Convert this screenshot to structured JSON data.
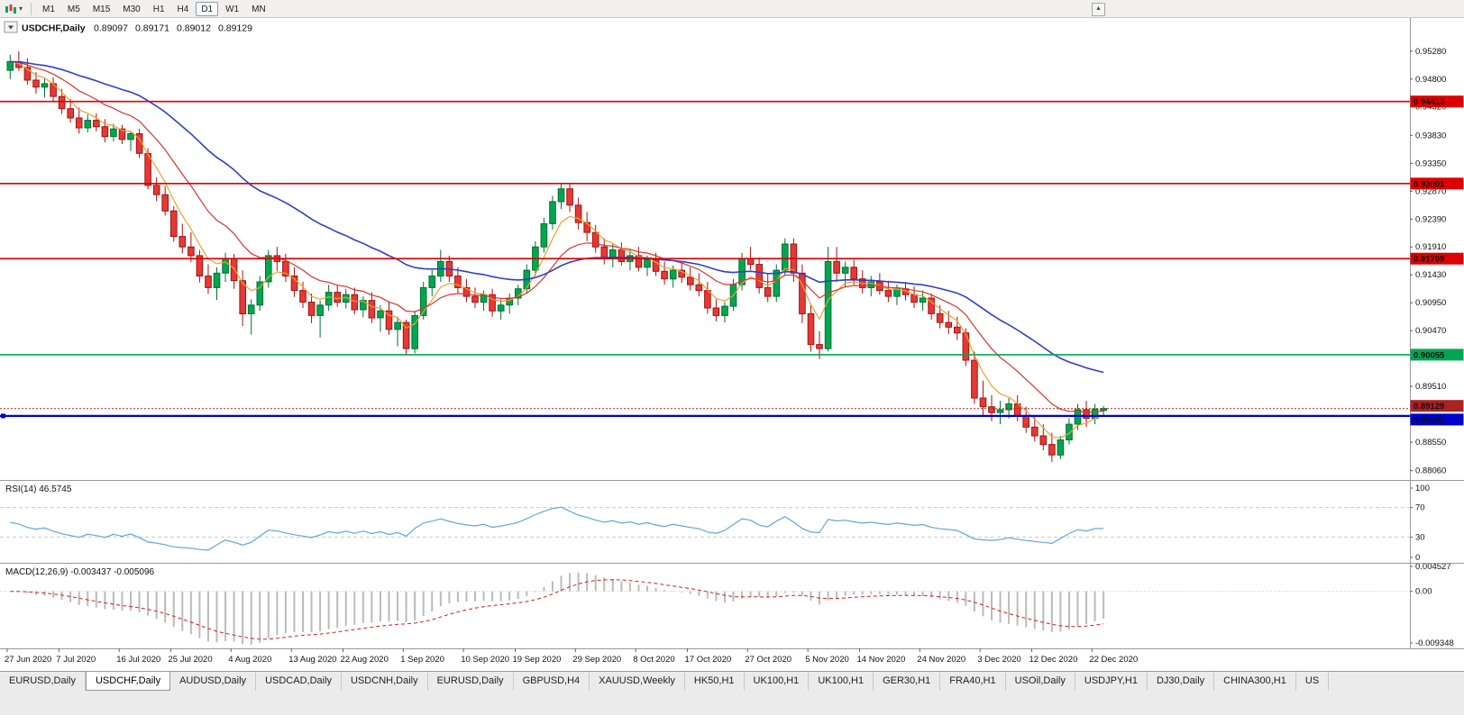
{
  "toolbar": {
    "timeframes": [
      "M1",
      "M5",
      "M15",
      "M30",
      "H1",
      "H4",
      "D1",
      "W1",
      "MN"
    ],
    "active_timeframe": "D1",
    "scroll_up_glyph": "▲",
    "chart_caret_glyph": "▾"
  },
  "chart": {
    "title": {
      "symbol_period": "USDCHF,Daily",
      "open": "0.89097",
      "high": "0.89171",
      "low": "0.89012",
      "close": "0.89129"
    }
  },
  "chart_data": {
    "type": "candlestick",
    "symbol": "USDCHF",
    "period": "Daily",
    "current_ohlc": {
      "open": 0.89097,
      "high": 0.89171,
      "low": 0.89012,
      "close": 0.89129
    },
    "ylim": [
      0.879,
      0.9585
    ],
    "colors": {
      "up_fill": "#00a651",
      "up_stroke": "#00702f",
      "down_fill": "#e53935",
      "down_stroke": "#a31212",
      "background": "#ffffff"
    },
    "price_axis_ticks": [
      "0.95280",
      "0.94800",
      "0.94320",
      "0.93830",
      "0.93350",
      "0.92870",
      "0.92390",
      "0.91910",
      "0.91430",
      "0.90950",
      "0.90470",
      "0.89510",
      "0.88550",
      "0.88060"
    ],
    "x_ticks": [
      {
        "i": 0,
        "label": "27 Jun 2020"
      },
      {
        "i": 6,
        "label": "7 Jul 2020"
      },
      {
        "i": 13,
        "label": "16 Jul 2020"
      },
      {
        "i": 19,
        "label": "25 Jul 2020"
      },
      {
        "i": 26,
        "label": "4 Aug 2020"
      },
      {
        "i": 33,
        "label": "13 Aug 2020"
      },
      {
        "i": 39,
        "label": "22 Aug 2020"
      },
      {
        "i": 46,
        "label": "1 Sep 2020"
      },
      {
        "i": 53,
        "label": "10 Sep 2020"
      },
      {
        "i": 59,
        "label": "19 Sep 2020"
      },
      {
        "i": 66,
        "label": "29 Sep 2020"
      },
      {
        "i": 73,
        "label": "8 Oct 2020"
      },
      {
        "i": 79,
        "label": "17 Oct 2020"
      },
      {
        "i": 86,
        "label": "27 Oct 2020"
      },
      {
        "i": 93,
        "label": "5 Nov 2020"
      },
      {
        "i": 99,
        "label": "14 Nov 2020"
      },
      {
        "i": 106,
        "label": "24 Nov 2020"
      },
      {
        "i": 113,
        "label": "3 Dec 2020"
      },
      {
        "i": 119,
        "label": "12 Dec 2020"
      },
      {
        "i": 126,
        "label": "22 Dec 2020"
      }
    ],
    "horizontal_lines": [
      {
        "price": 0.94413,
        "label": "0.94413",
        "color": "#dd0000",
        "width": 1.6
      },
      {
        "price": 0.93001,
        "label": "0.93001",
        "color": "#dd0000",
        "width": 1.6
      },
      {
        "price": 0.91709,
        "label": "0.91709",
        "color": "#dd0000",
        "width": 1.6
      },
      {
        "price": 0.90055,
        "label": "0.90055",
        "color": "#00a651",
        "width": 1.6
      },
      {
        "price": 0.89002,
        "label": "0.89002",
        "color": "#0000cc",
        "width": 2.2,
        "badge_dy": 4,
        "handle": true
      }
    ],
    "current_price_line": {
      "value": 0.89129,
      "label": "0.89129",
      "color": "#aa2222",
      "badge_dy": -3
    },
    "moving_averages": [
      {
        "name": "ma-fast",
        "period": 5,
        "color": "#f0a030",
        "width": 1.2
      },
      {
        "name": "ma-medium",
        "period": 13,
        "color": "#d83434",
        "width": 1.2
      },
      {
        "name": "ma-slow",
        "period": 34,
        "color": "#3040c8",
        "width": 1.6
      }
    ],
    "indicators": {
      "rsi": {
        "label": "RSI(14) 46.5745",
        "period": 14,
        "value": 46.5745,
        "axis_labels": [
          "100",
          "70",
          "30",
          "0"
        ],
        "levels": [
          70,
          30
        ],
        "range": [
          0,
          100
        ],
        "color": "#61a8d8"
      },
      "macd": {
        "label": "MACD(12,26,9) -0.003437 -0.005096",
        "fast": 12,
        "slow": 26,
        "signal": 9,
        "macd_value": -0.003437,
        "signal_value": -0.005096,
        "axis_labels": [
          "0.004527",
          "0.00",
          "-0.009348"
        ],
        "range": [
          -0.009348,
          0.004527
        ],
        "hist_color": "#bbbbbb",
        "signal_color": "#cc2222"
      }
    },
    "candles": [
      [
        0.9495,
        0.9522,
        0.948,
        0.951
      ],
      [
        0.951,
        0.9528,
        0.9494,
        0.95
      ],
      [
        0.95,
        0.9516,
        0.947,
        0.9478
      ],
      [
        0.9478,
        0.9492,
        0.9455,
        0.9466
      ],
      [
        0.9466,
        0.9481,
        0.9448,
        0.9472
      ],
      [
        0.9472,
        0.9483,
        0.944,
        0.945
      ],
      [
        0.945,
        0.9463,
        0.942,
        0.9429
      ],
      [
        0.9429,
        0.9446,
        0.9405,
        0.9413
      ],
      [
        0.9413,
        0.9431,
        0.9386,
        0.9396
      ],
      [
        0.9396,
        0.9419,
        0.9388,
        0.9409
      ],
      [
        0.9409,
        0.9421,
        0.939,
        0.9398
      ],
      [
        0.9398,
        0.9411,
        0.9371,
        0.9381
      ],
      [
        0.9381,
        0.9403,
        0.9373,
        0.9394
      ],
      [
        0.9394,
        0.9401,
        0.9368,
        0.9376
      ],
      [
        0.9376,
        0.9391,
        0.9356,
        0.9386
      ],
      [
        0.9386,
        0.9394,
        0.9344,
        0.9352
      ],
      [
        0.9352,
        0.9361,
        0.929,
        0.9297
      ],
      [
        0.9297,
        0.9311,
        0.927,
        0.9281
      ],
      [
        0.9281,
        0.9296,
        0.9245,
        0.9253
      ],
      [
        0.9253,
        0.9261,
        0.92,
        0.9209
      ],
      [
        0.9209,
        0.9231,
        0.918,
        0.9191
      ],
      [
        0.9191,
        0.9216,
        0.9165,
        0.9176
      ],
      [
        0.9176,
        0.9186,
        0.913,
        0.9141
      ],
      [
        0.9141,
        0.9161,
        0.911,
        0.9121
      ],
      [
        0.9121,
        0.9156,
        0.91,
        0.9146
      ],
      [
        0.9146,
        0.9181,
        0.9131,
        0.9171
      ],
      [
        0.9171,
        0.9179,
        0.9119,
        0.9133
      ],
      [
        0.9133,
        0.9151,
        0.9055,
        0.9076
      ],
      [
        0.9076,
        0.9101,
        0.904,
        0.9091
      ],
      [
        0.9091,
        0.9141,
        0.9081,
        0.9131
      ],
      [
        0.9131,
        0.9186,
        0.9121,
        0.9176
      ],
      [
        0.9176,
        0.9191,
        0.915,
        0.9166
      ],
      [
        0.9166,
        0.9179,
        0.9131,
        0.9141
      ],
      [
        0.9141,
        0.9156,
        0.9105,
        0.9116
      ],
      [
        0.9116,
        0.9131,
        0.9086,
        0.9096
      ],
      [
        0.9096,
        0.9111,
        0.906,
        0.9073
      ],
      [
        0.9073,
        0.9099,
        0.9035,
        0.9091
      ],
      [
        0.9091,
        0.9126,
        0.9081,
        0.9113
      ],
      [
        0.9113,
        0.9126,
        0.9088,
        0.9096
      ],
      [
        0.9096,
        0.9119,
        0.9085,
        0.9109
      ],
      [
        0.9109,
        0.9121,
        0.9075,
        0.9083
      ],
      [
        0.9083,
        0.9106,
        0.907,
        0.9099
      ],
      [
        0.9099,
        0.9113,
        0.906,
        0.9069
      ],
      [
        0.9069,
        0.9091,
        0.9045,
        0.9081
      ],
      [
        0.9081,
        0.9096,
        0.904,
        0.9049
      ],
      [
        0.9049,
        0.9071,
        0.902,
        0.9061
      ],
      [
        0.9061,
        0.9066,
        0.9006,
        0.9016
      ],
      [
        0.9016,
        0.9081,
        0.9008,
        0.9073
      ],
      [
        0.9073,
        0.9131,
        0.9066,
        0.9121
      ],
      [
        0.9121,
        0.9151,
        0.9106,
        0.9141
      ],
      [
        0.9141,
        0.9186,
        0.9131,
        0.9166
      ],
      [
        0.9166,
        0.9176,
        0.9131,
        0.9141
      ],
      [
        0.9141,
        0.9156,
        0.9111,
        0.9121
      ],
      [
        0.9121,
        0.9136,
        0.9096,
        0.9106
      ],
      [
        0.9106,
        0.9121,
        0.9086,
        0.9096
      ],
      [
        0.9096,
        0.9116,
        0.9081,
        0.9109
      ],
      [
        0.9109,
        0.9119,
        0.9071,
        0.9081
      ],
      [
        0.9081,
        0.9101,
        0.9066,
        0.9091
      ],
      [
        0.9091,
        0.9111,
        0.9076,
        0.9103
      ],
      [
        0.9103,
        0.9126,
        0.9091,
        0.9119
      ],
      [
        0.9119,
        0.9161,
        0.9111,
        0.9151
      ],
      [
        0.9151,
        0.9201,
        0.9141,
        0.9191
      ],
      [
        0.9191,
        0.9241,
        0.9181,
        0.9231
      ],
      [
        0.9231,
        0.9279,
        0.9221,
        0.9269
      ],
      [
        0.9269,
        0.93,
        0.9256,
        0.9291
      ],
      [
        0.9291,
        0.9299,
        0.9251,
        0.9263
      ],
      [
        0.9263,
        0.9276,
        0.9221,
        0.9233
      ],
      [
        0.9233,
        0.9251,
        0.9201,
        0.9216
      ],
      [
        0.9216,
        0.9229,
        0.9181,
        0.9191
      ],
      [
        0.9191,
        0.9206,
        0.9161,
        0.9173
      ],
      [
        0.9173,
        0.9196,
        0.9156,
        0.9186
      ],
      [
        0.9186,
        0.9199,
        0.9159,
        0.9166
      ],
      [
        0.9166,
        0.9186,
        0.9151,
        0.9176
      ],
      [
        0.9176,
        0.9191,
        0.9149,
        0.9156
      ],
      [
        0.9156,
        0.9176,
        0.9141,
        0.9169
      ],
      [
        0.9169,
        0.9181,
        0.9141,
        0.9149
      ],
      [
        0.9149,
        0.9166,
        0.9126,
        0.9136
      ],
      [
        0.9136,
        0.9159,
        0.9121,
        0.9151
      ],
      [
        0.9151,
        0.9163,
        0.9129,
        0.9139
      ],
      [
        0.9139,
        0.9156,
        0.9116,
        0.9126
      ],
      [
        0.9126,
        0.9146,
        0.9106,
        0.9116
      ],
      [
        0.9116,
        0.9131,
        0.9076,
        0.9086
      ],
      [
        0.9086,
        0.9101,
        0.9063,
        0.9073
      ],
      [
        0.9073,
        0.9096,
        0.9061,
        0.9089
      ],
      [
        0.9089,
        0.9136,
        0.9081,
        0.9126
      ],
      [
        0.9126,
        0.9181,
        0.9116,
        0.9171
      ],
      [
        0.9171,
        0.9191,
        0.9151,
        0.9161
      ],
      [
        0.9161,
        0.9173,
        0.9111,
        0.9121
      ],
      [
        0.9121,
        0.9146,
        0.9096,
        0.9106
      ],
      [
        0.9106,
        0.9161,
        0.9096,
        0.9151
      ],
      [
        0.9151,
        0.9206,
        0.9141,
        0.9196
      ],
      [
        0.9196,
        0.9206,
        0.9131,
        0.9146
      ],
      [
        0.9146,
        0.9161,
        0.906,
        0.9076
      ],
      [
        0.9076,
        0.9091,
        0.9011,
        0.9023
      ],
      [
        0.9023,
        0.9046,
        0.8998,
        0.9016
      ],
      [
        0.9016,
        0.9191,
        0.9011,
        0.9166
      ],
      [
        0.9166,
        0.9191,
        0.9131,
        0.9146
      ],
      [
        0.9146,
        0.9166,
        0.9121,
        0.9156
      ],
      [
        0.9156,
        0.9169,
        0.9126,
        0.9136
      ],
      [
        0.9136,
        0.9151,
        0.9111,
        0.9121
      ],
      [
        0.9121,
        0.9141,
        0.9106,
        0.9131
      ],
      [
        0.9131,
        0.9146,
        0.9109,
        0.9116
      ],
      [
        0.9116,
        0.9133,
        0.9096,
        0.9106
      ],
      [
        0.9106,
        0.9126,
        0.9091,
        0.9119
      ],
      [
        0.9119,
        0.9131,
        0.9099,
        0.9109
      ],
      [
        0.9109,
        0.9123,
        0.9086,
        0.9096
      ],
      [
        0.9096,
        0.9116,
        0.9081,
        0.9103
      ],
      [
        0.9103,
        0.9111,
        0.9066,
        0.9076
      ],
      [
        0.9076,
        0.9091,
        0.9051,
        0.9061
      ],
      [
        0.9061,
        0.9081,
        0.9041,
        0.9053
      ],
      [
        0.9053,
        0.9071,
        0.9031,
        0.9043
      ],
      [
        0.9043,
        0.9051,
        0.8986,
        0.8996
      ],
      [
        0.8996,
        0.9011,
        0.8921,
        0.8931
      ],
      [
        0.8931,
        0.8961,
        0.8901,
        0.8916
      ],
      [
        0.8916,
        0.8936,
        0.8891,
        0.8906
      ],
      [
        0.8906,
        0.8926,
        0.8886,
        0.8911
      ],
      [
        0.8911,
        0.8931,
        0.8896,
        0.8921
      ],
      [
        0.8921,
        0.8936,
        0.8891,
        0.8901
      ],
      [
        0.8901,
        0.8916,
        0.8871,
        0.8881
      ],
      [
        0.8881,
        0.8901,
        0.8856,
        0.8866
      ],
      [
        0.8866,
        0.8886,
        0.8841,
        0.8851
      ],
      [
        0.8851,
        0.8871,
        0.8821,
        0.8833
      ],
      [
        0.8833,
        0.8866,
        0.8826,
        0.8859
      ],
      [
        0.8859,
        0.8896,
        0.8851,
        0.8886
      ],
      [
        0.8886,
        0.8921,
        0.8876,
        0.8911
      ],
      [
        0.8911,
        0.8926,
        0.8881,
        0.8896
      ],
      [
        0.8896,
        0.8921,
        0.8886,
        0.8912
      ],
      [
        0.89097,
        0.89171,
        0.89012,
        0.89129
      ]
    ]
  },
  "tabs": {
    "items": [
      "EURUSD,Daily",
      "USDCHF,Daily",
      "AUDUSD,Daily",
      "USDCAD,Daily",
      "USDCNH,Daily",
      "EURUSD,Daily",
      "GBPUSD,H4",
      "XAUUSD,Weekly",
      "HK50,H1",
      "UK100,H1",
      "UK100,H1",
      "GER30,H1",
      "FRA40,H1",
      "USOil,Daily",
      "USDJPY,H1",
      "DJ30,Daily",
      "CHINA300,H1",
      "US"
    ],
    "active_index": 1
  }
}
